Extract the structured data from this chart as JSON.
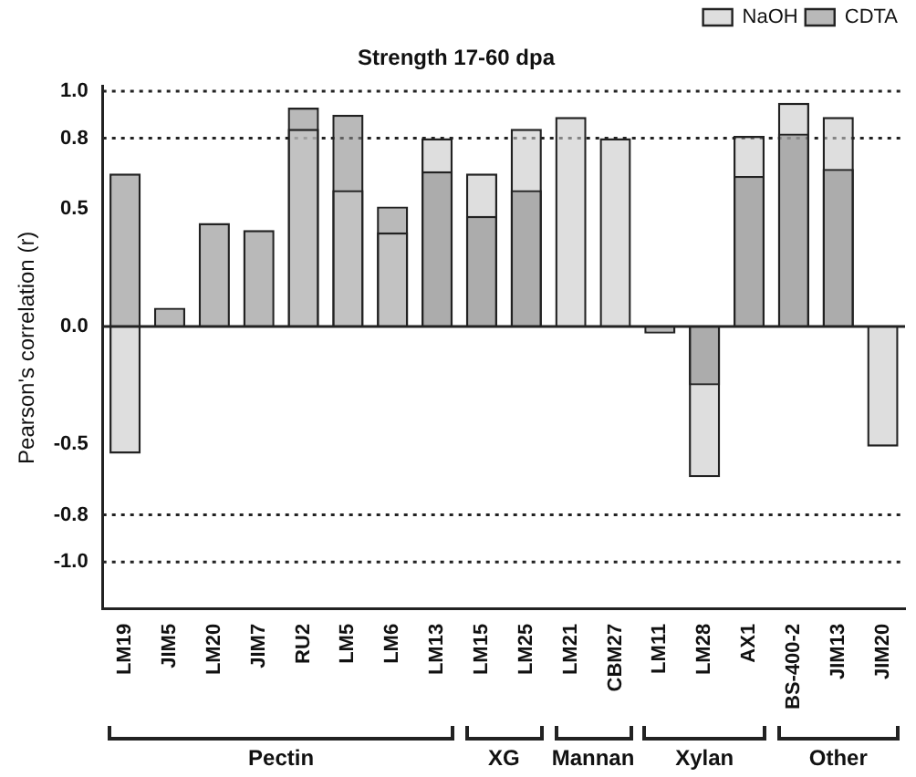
{
  "chart_data": {
    "type": "bar",
    "title": "Strength 17-60 dpa",
    "ylabel": "Pearson's correlation (r)",
    "categories": [
      "LM19",
      "JIM5",
      "LM20",
      "JIM7",
      "RU2",
      "LM5",
      "LM6",
      "LM13",
      "LM15",
      "LM25",
      "LM21",
      "CBM27",
      "LM11",
      "LM28",
      "AX1",
      "BS-400-2",
      "JIM13",
      "JIM20"
    ],
    "series": [
      {
        "name": "NaOH",
        "color": "#c8c8c8",
        "values": [
          -0.54,
          null,
          null,
          null,
          0.84,
          0.58,
          0.4,
          0.8,
          0.65,
          0.84,
          0.89,
          0.8,
          null,
          -0.64,
          0.81,
          0.95,
          0.89,
          -0.51
        ]
      },
      {
        "name": "CDTA",
        "color": "#8a8a8a",
        "values": [
          0.65,
          0.08,
          0.44,
          0.41,
          0.93,
          0.9,
          0.51,
          0.66,
          0.47,
          0.58,
          null,
          null,
          -0.03,
          -0.25,
          0.64,
          0.82,
          0.67,
          null
        ]
      }
    ],
    "ylim": [
      -1.2,
      1.02
    ],
    "yticks": [
      {
        "value": 1,
        "label": "1.0"
      },
      0.8,
      0.5,
      {
        "value": 0,
        "label": "0.0"
      },
      -0.5,
      -0.8,
      {
        "value": -1,
        "label": "-1.0"
      }
    ],
    "ref_lines": [
      {
        "axis": "y",
        "value": 1,
        "line_style": "dotted"
      },
      {
        "axis": "y",
        "value": 0.8,
        "line_style": "dotted"
      },
      {
        "axis": "y",
        "value": 0,
        "line_style": "solid"
      },
      {
        "axis": "y",
        "value": -0.8,
        "line_style": "dotted"
      },
      {
        "axis": "y",
        "value": -1,
        "line_style": "dotted"
      }
    ],
    "annotations": [
      "Pectin",
      "XG",
      "Mannan",
      "Xylan",
      "Other"
    ],
    "legend": "top right",
    "grid": false
  }
}
